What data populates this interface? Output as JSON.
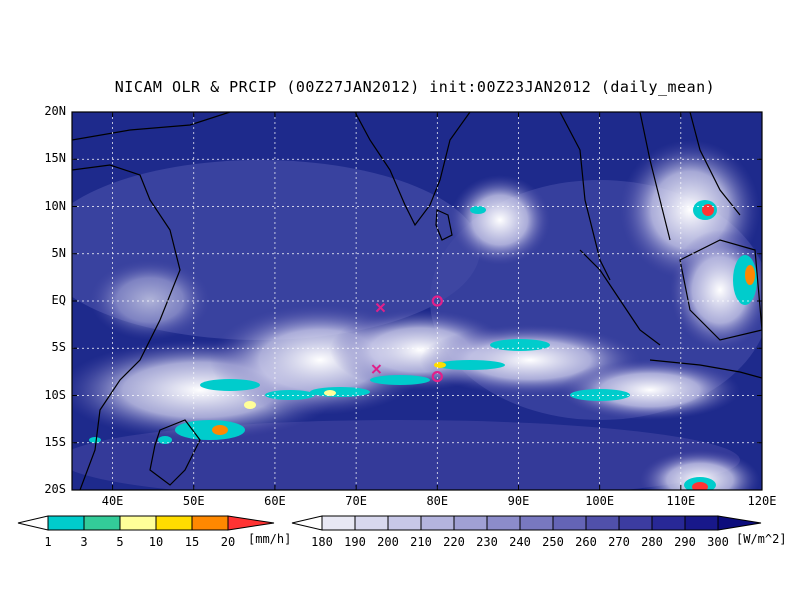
{
  "title": "NICAM OLR & PRCIP (00Z27JAN2012) init:00Z23JAN2012 (daily_mean)",
  "lat_labels": [
    "20N",
    "15N",
    "10N",
    "5N",
    "EQ",
    "5S",
    "10S",
    "15S",
    "20S"
  ],
  "lon_labels": [
    "40E",
    "50E",
    "60E",
    "70E",
    "80E",
    "90E",
    "100E",
    "110E",
    "120E"
  ],
  "precip_colorbar": {
    "labels": [
      "1",
      "3",
      "5",
      "10",
      "15",
      "20"
    ],
    "unit": "[mm/h]",
    "colors": [
      "#00cccc",
      "#33cc99",
      "#ffff99",
      "#ffdd00",
      "#ff8800",
      "#ff3333"
    ]
  },
  "olr_colorbar": {
    "labels": [
      "180",
      "190",
      "200",
      "210",
      "220",
      "230",
      "240",
      "250",
      "260",
      "270",
      "280",
      "290",
      "300"
    ],
    "unit": "[W/m^2]",
    "colors": [
      "#e8e8f4",
      "#d8d8ee",
      "#c8c8e8",
      "#b4b4de",
      "#a0a0d4",
      "#8c8cca",
      "#7878c0",
      "#6464b6",
      "#5050aa",
      "#3c3ca0",
      "#282896",
      "#18188a",
      "#0c0c7c"
    ]
  },
  "markers": [
    {
      "type": "x",
      "lon": 73,
      "lat": -0.7,
      "color": "#e0208a"
    },
    {
      "type": "x",
      "lon": 72.5,
      "lat": -7.2,
      "color": "#e0208a"
    },
    {
      "type": "circle",
      "lon": 80,
      "lat": 0,
      "color": "#e0208a"
    },
    {
      "type": "circle",
      "lon": 80,
      "lat": -8,
      "color": "#e0208a"
    }
  ],
  "map_colors": {
    "ocean": "#1e2a8c",
    "coast": "#000000",
    "grid": "#ffffff"
  }
}
